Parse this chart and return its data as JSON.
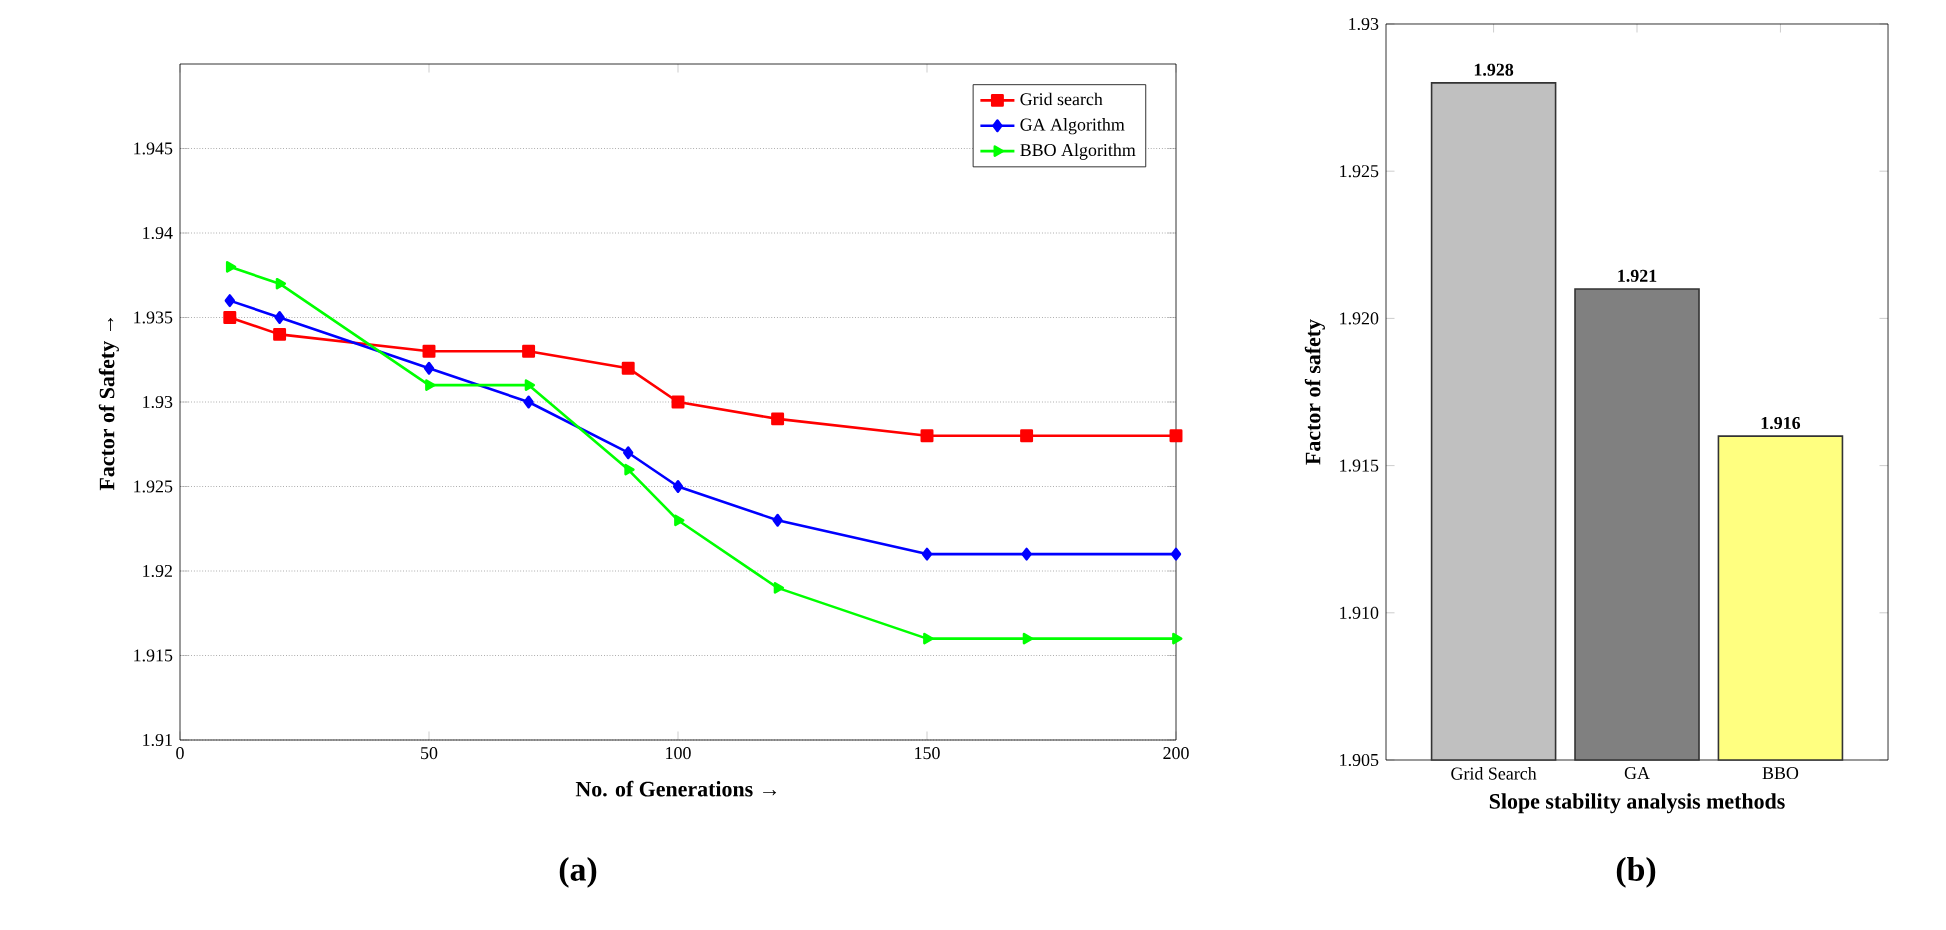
{
  "chart_data": [
    {
      "type": "line",
      "xlabel": "No. of Generations →",
      "ylabel": "Factor of Safety →",
      "xlim": [
        0,
        200
      ],
      "xticks": [
        0,
        50,
        100,
        150,
        200
      ],
      "ylim": [
        1.91,
        1.95
      ],
      "yticks": [
        1.91,
        1.915,
        1.92,
        1.925,
        1.93,
        1.935,
        1.94,
        1.945
      ],
      "grid": "y",
      "legend": "top right",
      "line_style": "solid",
      "annotations": [
        "(a)"
      ],
      "x": [
        10,
        20,
        50,
        70,
        90,
        100,
        120,
        150,
        170,
        200
      ],
      "series": [
        {
          "name": "Grid search",
          "color": "#ff0000",
          "marker": "square",
          "values": [
            1.935,
            1.934,
            1.933,
            1.933,
            1.932,
            1.93,
            1.929,
            1.928,
            1.928,
            1.928
          ]
        },
        {
          "name": "GA Algorithm",
          "color": "#0000ff",
          "marker": "diamond",
          "values": [
            1.936,
            1.935,
            1.932,
            1.93,
            1.927,
            1.925,
            1.923,
            1.921,
            1.921,
            1.921
          ]
        },
        {
          "name": "BBO Algorithm",
          "color": "#00ff00",
          "marker": "triangle",
          "values": [
            1.938,
            1.937,
            1.931,
            1.931,
            1.926,
            1.923,
            1.919,
            1.916,
            1.916,
            1.916
          ]
        }
      ]
    },
    {
      "type": "bar",
      "xlabel": "Slope stability analysis methods",
      "ylabel": "Factor of safety",
      "categories": [
        "Grid Search",
        "GA",
        "BBO"
      ],
      "values": [
        1.928,
        1.921,
        1.916
      ],
      "colors": [
        "#c0c0c0",
        "#808080",
        "#ffff80"
      ],
      "data_labels": true,
      "ylim": [
        1.905,
        1.93
      ],
      "yticks": [
        1.905,
        {
          "value": 1.91,
          "label": "1.910"
        },
        {
          "value": 1.915,
          "label": "1.915"
        },
        {
          "value": 1.92,
          "label": "1.920"
        },
        1.925,
        1.93
      ],
      "annotations": [
        "(b)"
      ]
    }
  ]
}
